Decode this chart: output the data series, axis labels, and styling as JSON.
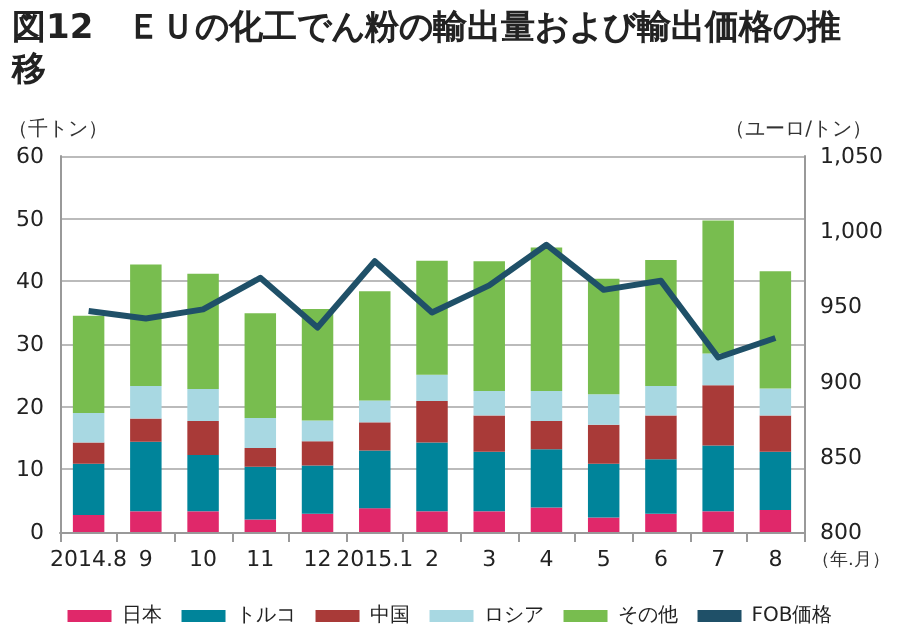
{
  "chart_data": {
    "type": "bar",
    "title": "図12　ＥＵの化工でん粉の輸出量および輸出価格の推移",
    "xlabel": "（年.月）",
    "ylabel": "（千トン）",
    "y2label": "（ユーロ/トン）",
    "categories": [
      "2014.8",
      "9",
      "10",
      "11",
      "12",
      "2015.1",
      "2",
      "3",
      "4",
      "5",
      "6",
      "7",
      "8"
    ],
    "stacked": true,
    "series": [
      {
        "name": "日本",
        "color": "#e0286a",
        "values": [
          2.7,
          3.3,
          3.3,
          2.0,
          2.9,
          3.8,
          3.3,
          3.3,
          3.9,
          2.3,
          2.9,
          3.3,
          3.5
        ]
      },
      {
        "name": "トルコ",
        "color": "#00849a",
        "values": [
          8.2,
          11.1,
          9.0,
          8.4,
          7.7,
          9.2,
          11.0,
          9.5,
          9.3,
          8.6,
          8.7,
          10.5,
          9.3
        ]
      },
      {
        "name": "中国",
        "color": "#a93a38",
        "values": [
          3.4,
          3.7,
          5.4,
          3.0,
          3.9,
          4.5,
          6.6,
          5.8,
          4.5,
          6.2,
          7.0,
          9.6,
          5.8
        ]
      },
      {
        "name": "ロシア",
        "color": "#a8d8e2",
        "values": [
          4.7,
          5.2,
          5.1,
          4.8,
          3.3,
          3.5,
          4.2,
          3.9,
          4.8,
          4.9,
          4.7,
          5.1,
          4.3
        ]
      },
      {
        "name": "その他",
        "color": "#78bd4f",
        "values": [
          15.5,
          19.4,
          18.4,
          16.7,
          17.8,
          17.4,
          18.2,
          20.7,
          22.9,
          18.4,
          20.1,
          21.2,
          18.7
        ]
      },
      {
        "name": "FOB価格",
        "type": "line",
        "axis": "y2",
        "color": "#1f5068",
        "values": [
          947,
          942,
          948,
          969,
          936,
          980,
          946,
          964,
          991,
          961,
          967,
          916,
          929
        ]
      }
    ],
    "ylim": [
      0,
      60
    ],
    "yticks": [
      0,
      10,
      20,
      30,
      40,
      50,
      60
    ],
    "y2lim": [
      800,
      1050
    ],
    "y2ticks": [
      800,
      850,
      900,
      950,
      {
        "value": 1000,
        "label": "1,000"
      },
      {
        "value": 1050,
        "label": "1,050"
      }
    ],
    "grid": "y",
    "legend": "bottom",
    "marker": "none"
  }
}
